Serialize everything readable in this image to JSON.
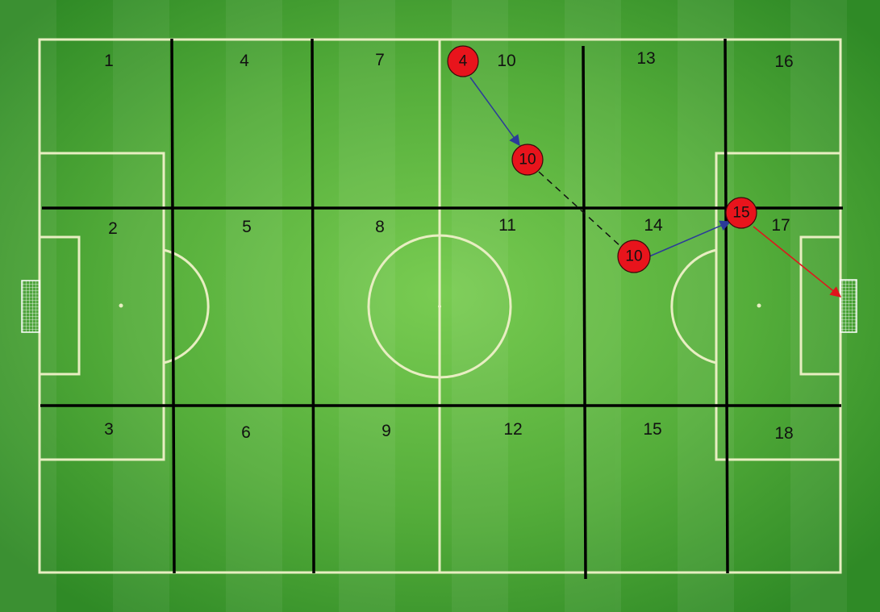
{
  "zones": [
    {
      "label": "1"
    },
    {
      "label": "2"
    },
    {
      "label": "3"
    },
    {
      "label": "4"
    },
    {
      "label": "5"
    },
    {
      "label": "6"
    },
    {
      "label": "7"
    },
    {
      "label": "8"
    },
    {
      "label": "9"
    },
    {
      "label": "10"
    },
    {
      "label": "11"
    },
    {
      "label": "12"
    },
    {
      "label": "13"
    },
    {
      "label": "14"
    },
    {
      "label": "15"
    },
    {
      "label": "16"
    },
    {
      "label": "17"
    },
    {
      "label": "18"
    }
  ],
  "players": [
    {
      "number": "4"
    },
    {
      "number": "10"
    },
    {
      "number": "10"
    },
    {
      "number": "15"
    }
  ],
  "moves": [
    {
      "from": "4",
      "to": "10",
      "kind": "pass"
    },
    {
      "from": "10",
      "to": "10",
      "kind": "run"
    },
    {
      "from": "10",
      "to": "15",
      "kind": "pass"
    },
    {
      "from": "15",
      "to": "goal",
      "kind": "shot"
    }
  ],
  "colors": {
    "pitch": "#3d9a2e",
    "pitch_light": "#6cc44a",
    "lines": "#e8eec2",
    "grid": "#000000",
    "player": "#e8141c",
    "pass_arrow": "#2b3a9a",
    "shot_arrow": "#e0141c"
  }
}
